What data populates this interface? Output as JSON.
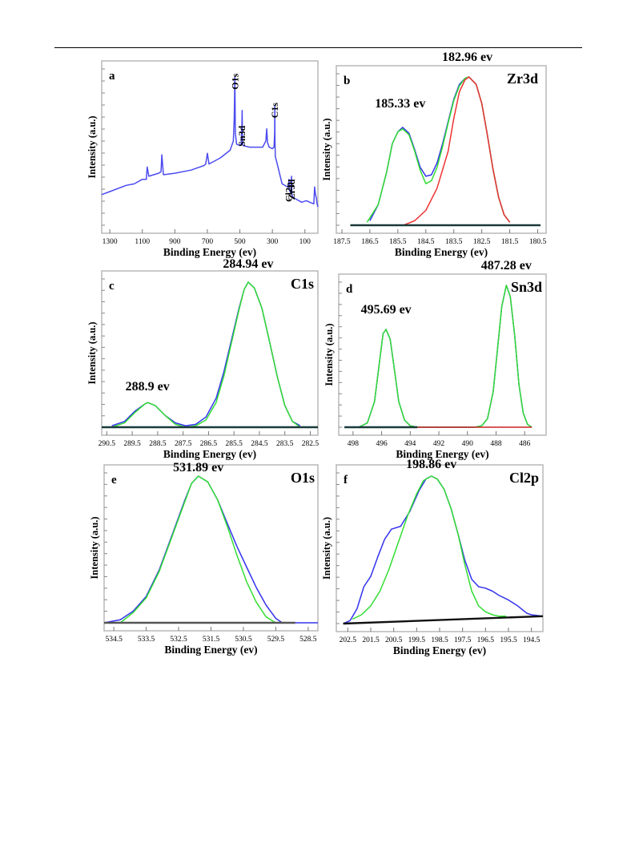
{
  "chart_data": [
    {
      "panel": "a",
      "type": "line",
      "corner_label": "",
      "xlabel": "Binding Energy (ev)",
      "ylabel": "Intensity (a.u.)",
      "xlim": [
        1350,
        20
      ],
      "ylim": [
        0,
        100
      ],
      "xticks": [
        1300,
        1100,
        900,
        700,
        500,
        300,
        100
      ],
      "peak_labels": [
        {
          "text": "O1s",
          "x": 531
        },
        {
          "text": "Sn3d",
          "x": 487
        },
        {
          "text": "C1s",
          "x": 285
        },
        {
          "text": "Cl2p",
          "x": 199
        },
        {
          "text": "Zr3d",
          "x": 183
        }
      ],
      "series": [
        {
          "color": "#4b4bf0",
          "x": [
            1350,
            1300,
            1200,
            1150,
            1100,
            1075,
            1070,
            1060,
            1000,
            985,
            980,
            970,
            900,
            800,
            720,
            710,
            700,
            690,
            620,
            560,
            540,
            535,
            531,
            528,
            520,
            500,
            492,
            488,
            486,
            484,
            480,
            440,
            360,
            340,
            335,
            330,
            320,
            300,
            290,
            286,
            285,
            284,
            282,
            270,
            240,
            205,
            200,
            198,
            196,
            186,
            184,
            182,
            180,
            170,
            120,
            90,
            70,
            45,
            40,
            35,
            30,
            25,
            20
          ],
          "y": [
            20,
            22,
            26,
            27,
            30,
            30,
            38,
            32,
            34,
            35,
            46,
            33,
            34,
            36,
            39,
            40,
            47,
            40,
            44,
            49,
            55,
            70,
            97,
            60,
            53,
            52,
            53,
            63,
            75,
            57,
            52,
            51,
            51,
            55,
            63,
            54,
            51,
            50,
            51,
            60,
            78,
            55,
            45,
            40,
            27,
            25,
            26,
            30,
            23,
            21,
            28,
            32,
            20,
            18,
            15,
            16,
            15,
            14,
            25,
            20,
            18,
            14,
            12
          ]
        }
      ]
    },
    {
      "panel": "b",
      "type": "line",
      "corner_label": "Zr3d",
      "xlabel": "Binding Energy (ev)",
      "ylabel": "Intensity (a.u.)",
      "xlim": [
        187.7,
        180.2
      ],
      "ylim": [
        0,
        100
      ],
      "xticks": [
        187.5,
        186.5,
        185.5,
        184.5,
        183.5,
        182.5,
        181.5,
        180.5
      ],
      "peak_labels": [
        {
          "text": "185.33 ev",
          "x": 185.33
        },
        {
          "text": "182.96 ev",
          "x": 182.96
        }
      ],
      "series": [
        {
          "color": "#3333ee",
          "x": [
            186.5,
            186.2,
            185.9,
            185.7,
            185.5,
            185.33,
            185.1,
            184.9,
            184.7,
            184.5,
            184.3,
            184.1,
            183.9,
            183.7,
            183.5,
            183.3,
            183.1,
            182.96,
            182.7,
            182.5,
            182.3,
            182.1,
            181.9,
            181.7,
            181.5
          ],
          "y": [
            3,
            14,
            36,
            55,
            63,
            66,
            62,
            51,
            39,
            33,
            34,
            42,
            55,
            70,
            85,
            95,
            99,
            100,
            95,
            82,
            61,
            38,
            19,
            7,
            2
          ]
        },
        {
          "color": "#33dd33",
          "x": [
            186.6,
            186.2,
            185.9,
            185.7,
            185.5,
            185.33,
            185.1,
            184.9,
            184.7,
            184.5,
            184.3,
            184.1,
            183.9,
            183.7,
            183.5,
            183.3,
            183.1,
            182.96,
            182.7,
            182.5,
            182.3,
            182.1,
            181.9,
            181.7,
            181.5
          ],
          "y": [
            2,
            14,
            36,
            55,
            63,
            65,
            61,
            50,
            37,
            28,
            30,
            39,
            53,
            69,
            84,
            94,
            99,
            100,
            95,
            82,
            61,
            38,
            19,
            7,
            2
          ]
        },
        {
          "color": "#ee3333",
          "x": [
            185.3,
            184.9,
            184.5,
            184.1,
            183.7,
            183.5,
            183.3,
            183.1,
            182.96,
            182.7,
            182.5,
            182.3,
            182.1,
            181.9,
            181.7,
            181.5
          ],
          "y": [
            0,
            3,
            10,
            25,
            50,
            72,
            90,
            98,
            100,
            95,
            82,
            61,
            38,
            19,
            7,
            2
          ]
        },
        {
          "color": "#1a3a3a",
          "x": [
            187.2,
            184.5,
            181.5,
            180.4
          ],
          "y": [
            0,
            0,
            0,
            0
          ]
        }
      ]
    },
    {
      "panel": "c",
      "type": "line",
      "corner_label": "C1s",
      "xlabel": "Binding Energy (ev)",
      "ylabel": "Intensity (a.u.)",
      "xlim": [
        290.7,
        282.2
      ],
      "ylim": [
        0,
        100
      ],
      "xticks": [
        290.5,
        289.5,
        288.5,
        287.5,
        286.5,
        285.5,
        284.5,
        283.5,
        282.5
      ],
      "peak_labels": [
        {
          "text": "288.9 ev",
          "x": 288.9
        },
        {
          "text": "284.94 ev",
          "x": 284.94
        }
      ],
      "series": [
        {
          "color": "#3333ee",
          "x": [
            290.3,
            289.8,
            289.4,
            289.0,
            288.9,
            288.6,
            288.2,
            287.8,
            287.4,
            287.0,
            286.6,
            286.2,
            285.9,
            285.6,
            285.3,
            285.1,
            284.94,
            284.7,
            284.4,
            284.1,
            283.8,
            283.5,
            283.2,
            282.9
          ],
          "y": [
            1,
            4,
            11,
            16,
            17,
            15,
            8,
            3,
            1,
            2,
            7,
            20,
            38,
            60,
            82,
            95,
            100,
            96,
            82,
            59,
            35,
            15,
            4,
            1
          ]
        },
        {
          "color": "#33dd33",
          "x": [
            290.3,
            289.8,
            289.4,
            289.0,
            288.9,
            288.6,
            288.2,
            287.8,
            287.4,
            287.0,
            286.6,
            286.2,
            285.9,
            285.6,
            285.3,
            285.1,
            284.94,
            284.7,
            284.4,
            284.1,
            283.8,
            283.5,
            283.2,
            282.9
          ],
          "y": [
            0,
            3,
            10,
            16,
            17,
            15,
            8,
            2,
            0,
            1,
            5,
            17,
            35,
            58,
            81,
            95,
            100,
            96,
            82,
            59,
            35,
            15,
            4,
            0
          ]
        },
        {
          "color": "#1a3a3a",
          "x": [
            290.7,
            282.2
          ],
          "y": [
            0,
            0
          ]
        }
      ]
    },
    {
      "panel": "d",
      "type": "line",
      "corner_label": "Sn3d",
      "xlabel": "Binding Energy (ev)",
      "ylabel": "Intensity (a.u.)",
      "xlim": [
        499,
        484.5
      ],
      "ylim": [
        0,
        100
      ],
      "xticks": [
        498,
        496,
        494,
        492,
        490,
        488,
        486
      ],
      "peak_labels": [
        {
          "text": "495.69 ev",
          "x": 495.69
        },
        {
          "text": "487.28 ev",
          "x": 487.28
        }
      ],
      "series": [
        {
          "color": "#3333ee",
          "x": [
            497.6,
            497.0,
            496.5,
            496.1,
            495.9,
            495.69,
            495.4,
            495.1,
            494.8,
            494.4,
            494.0,
            493.5,
            490.0,
            489.5,
            489.0,
            488.6,
            488.2,
            487.9,
            487.6,
            487.28,
            487.0,
            486.7,
            486.4,
            486.1,
            485.8,
            485.5
          ],
          "y": [
            0,
            3,
            18,
            50,
            66,
            69,
            62,
            40,
            18,
            5,
            1,
            0,
            0,
            0,
            1,
            6,
            25,
            55,
            85,
            100,
            92,
            65,
            30,
            10,
            2,
            0
          ]
        },
        {
          "color": "#33dd33",
          "x": [
            497.6,
            497.0,
            496.5,
            496.1,
            495.9,
            495.69,
            495.4,
            495.1,
            494.8,
            494.4,
            494.0,
            493.5,
            490.0,
            489.5,
            489.0,
            488.6,
            488.2,
            487.9,
            487.6,
            487.28,
            487.0,
            486.7,
            486.4,
            486.1,
            485.8,
            485.5
          ],
          "y": [
            0,
            3,
            18,
            50,
            66,
            69,
            62,
            40,
            18,
            5,
            1,
            0,
            0,
            0,
            1,
            6,
            25,
            55,
            85,
            100,
            92,
            65,
            30,
            10,
            2,
            0
          ]
        },
        {
          "color": "#cc2222",
          "x": [
            493.5,
            488.5,
            485.5
          ],
          "y": [
            0,
            0,
            0
          ]
        },
        {
          "color": "#1a3a3a",
          "x": [
            498.6,
            493.5
          ],
          "y": [
            0,
            0
          ]
        }
      ]
    },
    {
      "panel": "e",
      "type": "line",
      "corner_label": "O1s",
      "xlabel": "Binding Energy (ev)",
      "ylabel": "Intensity (a.u.)",
      "xlim": [
        534.8,
        528.2
      ],
      "ylim": [
        0,
        100
      ],
      "xticks": [
        534.5,
        533.5,
        532.5,
        531.5,
        530.5,
        529.5,
        528.5
      ],
      "peak_labels": [
        {
          "text": "531.89 ev",
          "x": 531.89
        }
      ],
      "series": [
        {
          "color": "#3333ee",
          "x": [
            534.8,
            534.3,
            533.9,
            533.5,
            533.1,
            532.7,
            532.3,
            532.1,
            531.89,
            531.6,
            531.3,
            531.0,
            530.7,
            530.4,
            530.1,
            529.8,
            529.5,
            529.3,
            528.2
          ],
          "y": [
            0,
            2,
            8,
            18,
            36,
            60,
            84,
            95,
            100,
            96,
            84,
            68,
            52,
            38,
            24,
            12,
            3,
            0,
            0
          ]
        },
        {
          "color": "#33dd33",
          "x": [
            534.3,
            533.9,
            533.5,
            533.1,
            532.7,
            532.3,
            532.1,
            531.89,
            531.6,
            531.3,
            531.0,
            530.7,
            530.4,
            530.1,
            529.8,
            529.5
          ],
          "y": [
            0,
            7,
            17,
            35,
            59,
            83,
            95,
            100,
            96,
            84,
            66,
            46,
            28,
            14,
            4,
            0
          ]
        },
        {
          "color": "#555555",
          "x": [
            534.8,
            528.9
          ],
          "y": [
            0,
            0
          ]
        }
      ]
    },
    {
      "panel": "f",
      "type": "line",
      "corner_label": "Cl2p",
      "xlabel": "Binding Energy (ev)",
      "ylabel": "Intensity (a.u.)",
      "xlim": [
        203,
        194
      ],
      "ylim": [
        0,
        100
      ],
      "xticks": [
        202.5,
        201.5,
        200.5,
        199.5,
        198.5,
        197.5,
        196.5,
        195.5,
        194.5
      ],
      "peak_labels": [
        {
          "text": "198.86 ev",
          "x": 198.86
        }
      ],
      "series": [
        {
          "color": "#3333ee",
          "x": [
            202.7,
            202.4,
            202.1,
            201.8,
            201.5,
            201.2,
            200.9,
            200.6,
            200.2,
            199.8,
            199.4,
            199.1,
            198.86,
            198.6,
            198.3,
            198.0,
            197.7,
            197.4,
            197.1,
            196.8,
            196.5,
            196.2,
            195.9,
            195.5,
            195.1,
            194.7,
            194.5,
            194.0
          ],
          "y": [
            0,
            2,
            10,
            25,
            32,
            45,
            57,
            64,
            66,
            76,
            90,
            98,
            100,
            98,
            91,
            78,
            61,
            43,
            30,
            25,
            24,
            22,
            19,
            16,
            12,
            7,
            6,
            5
          ]
        },
        {
          "color": "#33dd33",
          "x": [
            202.3,
            201.9,
            201.5,
            201.1,
            200.7,
            200.3,
            199.9,
            199.5,
            199.2,
            198.86,
            198.6,
            198.3,
            198.0,
            197.7,
            197.4,
            197.1,
            196.8,
            196.5,
            196.2,
            195.9,
            195.6
          ],
          "y": [
            3,
            6,
            12,
            22,
            37,
            55,
            73,
            88,
            97,
            100,
            98,
            91,
            78,
            61,
            40,
            22,
            12,
            8,
            6,
            5,
            5
          ]
        },
        {
          "color": "#111111",
          "x": [
            202.7,
            194.0
          ],
          "y": [
            0,
            5
          ]
        }
      ]
    }
  ]
}
